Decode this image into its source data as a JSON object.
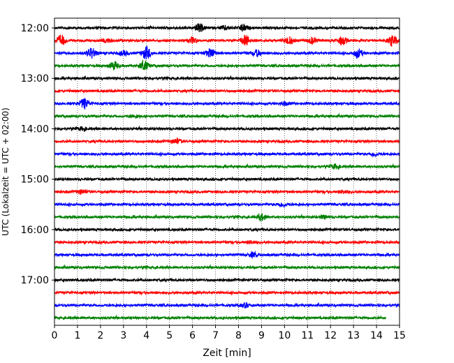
{
  "chart_data": {
    "type": "line",
    "title": "",
    "xlabel": "Zeit  [min]",
    "ylabel": "UTC (Lokalzeit = UTC + 02:00)",
    "xlim": [
      0,
      15
    ],
    "x_ticks": [
      0,
      1,
      2,
      3,
      4,
      5,
      6,
      7,
      8,
      9,
      10,
      11,
      12,
      13,
      14,
      15
    ],
    "y_tick_labels": [
      "12:00",
      "13:00",
      "14:00",
      "15:00",
      "16:00",
      "17:00"
    ],
    "trace_interval_minutes": 15,
    "color_cycle": [
      "#000000",
      "#ff0000",
      "#0000ff",
      "#008000"
    ],
    "grid": {
      "x": true,
      "y": false,
      "style": "dotted"
    },
    "series": [
      {
        "start": "12:00",
        "color": "#000000",
        "events": [
          [
            6.3,
            0.8
          ],
          [
            8.2,
            0.6
          ],
          [
            7.4,
            0.4
          ]
        ]
      },
      {
        "start": "12:15",
        "color": "#ff0000",
        "events": [
          [
            0.3,
            1.0
          ],
          [
            8.3,
            1.0
          ],
          [
            10.2,
            0.7
          ],
          [
            11.2,
            0.6
          ],
          [
            12.5,
            0.8
          ],
          [
            14.7,
            1.0
          ],
          [
            6.0,
            0.5
          ],
          [
            2.3,
            0.4
          ]
        ]
      },
      {
        "start": "12:30",
        "color": "#0000ff",
        "events": [
          [
            1.6,
            1.0
          ],
          [
            4.0,
            1.2
          ],
          [
            6.8,
            0.9
          ],
          [
            8.8,
            0.6
          ],
          [
            13.2,
            0.8
          ],
          [
            3.0,
            0.4
          ]
        ]
      },
      {
        "start": "12:45",
        "color": "#008000",
        "events": [
          [
            2.6,
            0.8
          ],
          [
            3.9,
            0.9
          ]
        ]
      },
      {
        "start": "13:00",
        "color": "#000000",
        "events": []
      },
      {
        "start": "13:15",
        "color": "#ff0000",
        "events": []
      },
      {
        "start": "13:30",
        "color": "#0000ff",
        "events": [
          [
            1.3,
            1.0
          ],
          [
            10.0,
            0.3
          ]
        ]
      },
      {
        "start": "13:45",
        "color": "#008000",
        "events": [
          [
            3.5,
            0.3
          ]
        ]
      },
      {
        "start": "14:00",
        "color": "#000000",
        "events": [
          [
            1.2,
            0.3
          ]
        ]
      },
      {
        "start": "14:15",
        "color": "#ff0000",
        "events": [
          [
            5.3,
            0.5
          ]
        ]
      },
      {
        "start": "14:30",
        "color": "#0000ff",
        "events": [
          [
            13.9,
            0.3
          ]
        ]
      },
      {
        "start": "14:45",
        "color": "#008000",
        "events": [
          [
            12.2,
            0.4
          ]
        ]
      },
      {
        "start": "15:00",
        "color": "#000000",
        "events": []
      },
      {
        "start": "15:15",
        "color": "#ff0000",
        "events": [
          [
            1.2,
            0.4
          ],
          [
            12.6,
            0.3
          ]
        ]
      },
      {
        "start": "15:30",
        "color": "#0000ff",
        "events": [
          [
            9.9,
            0.4
          ]
        ]
      },
      {
        "start": "15:45",
        "color": "#008000",
        "events": [
          [
            9.0,
            0.6
          ],
          [
            11.7,
            0.3
          ]
        ]
      },
      {
        "start": "16:00",
        "color": "#000000",
        "events": []
      },
      {
        "start": "16:15",
        "color": "#ff0000",
        "events": [
          [
            8.6,
            0.3
          ]
        ]
      },
      {
        "start": "16:30",
        "color": "#0000ff",
        "events": [
          [
            8.6,
            0.4
          ]
        ]
      },
      {
        "start": "16:45",
        "color": "#008000",
        "events": []
      },
      {
        "start": "17:00",
        "color": "#000000",
        "events": []
      },
      {
        "start": "17:15",
        "color": "#ff0000",
        "events": []
      },
      {
        "start": "17:30",
        "color": "#0000ff",
        "events": [
          [
            8.3,
            0.4
          ]
        ]
      },
      {
        "start": "17:45",
        "color": "#008000",
        "events": [],
        "end_minute": 14.4
      }
    ]
  }
}
